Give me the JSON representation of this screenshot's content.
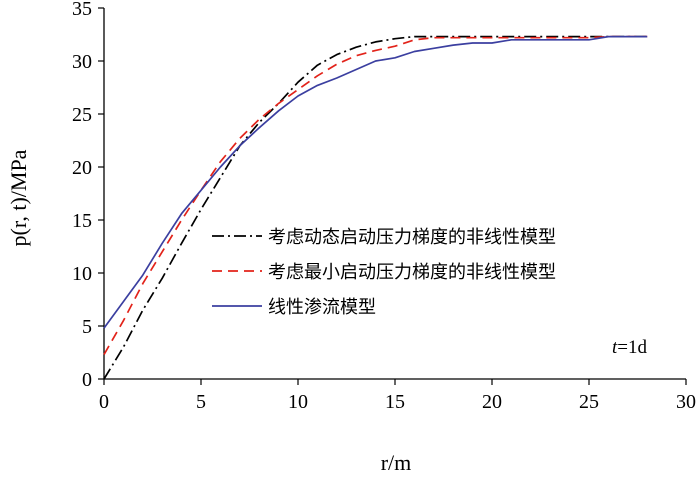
{
  "chart_data": {
    "type": "line",
    "xlabel": "r/m",
    "ylabel": "p(r, t)/MPa",
    "xlim": [
      0,
      30
    ],
    "ylim": [
      0,
      35
    ],
    "xticks": [
      0,
      5,
      10,
      15,
      20,
      25,
      30
    ],
    "yticks": [
      0,
      5,
      10,
      15,
      20,
      25,
      30,
      35
    ],
    "grid": false,
    "legend_position": "center-right",
    "annotation": "t=1d",
    "series": [
      {
        "name": "考虑动态启动压力梯度的非线性模型",
        "style": "dash-dot",
        "color": "#000000",
        "x": [
          0,
          1,
          2,
          3,
          4,
          5,
          6,
          7,
          8,
          9,
          10,
          11,
          12,
          13,
          14,
          15,
          16,
          17,
          18,
          19,
          20,
          21,
          22,
          23,
          24,
          25,
          26,
          27,
          28
        ],
        "y": [
          0,
          3,
          6.5,
          9.5,
          12.8,
          16,
          19,
          22,
          24.2,
          26,
          28,
          29.6,
          30.6,
          31.3,
          31.8,
          32.1,
          32.3,
          32.3,
          32.3,
          32.3,
          32.3,
          32.3,
          32.3,
          32.3,
          32.3,
          32.3,
          32.3,
          32.3,
          32.3
        ]
      },
      {
        "name": "考虑最小启动压力梯度的非线性模型",
        "style": "dashed",
        "color": "#e2231a",
        "x": [
          0,
          1,
          2,
          3,
          4,
          5,
          6,
          7,
          8,
          9,
          10,
          11,
          12,
          13,
          14,
          15,
          16,
          17,
          18,
          19,
          20,
          21,
          22,
          23,
          24,
          25,
          26,
          27,
          28
        ],
        "y": [
          2.3,
          5.5,
          9,
          12,
          15,
          17.8,
          20.5,
          22.7,
          24.5,
          26,
          27.3,
          28.6,
          29.7,
          30.5,
          31,
          31.4,
          32,
          32.2,
          32.2,
          32.2,
          32.2,
          32.2,
          32.2,
          32.2,
          32.2,
          32.2,
          32.3,
          32.3,
          32.3
        ]
      },
      {
        "name": "线性渗流模型",
        "style": "solid",
        "color": "#3b3fa0",
        "x": [
          0,
          1,
          2,
          3,
          4,
          5,
          6,
          7,
          8,
          9,
          10,
          11,
          12,
          13,
          14,
          15,
          16,
          17,
          18,
          19,
          20,
          21,
          22,
          23,
          24,
          25,
          26,
          27,
          28
        ],
        "y": [
          4.8,
          7.3,
          9.8,
          12.8,
          15.6,
          17.8,
          20,
          22,
          23.7,
          25.3,
          26.7,
          27.7,
          28.4,
          29.2,
          30,
          30.3,
          30.9,
          31.2,
          31.5,
          31.7,
          31.7,
          32,
          32,
          32,
          32,
          32,
          32.3,
          32.3,
          32.3
        ]
      }
    ]
  }
}
